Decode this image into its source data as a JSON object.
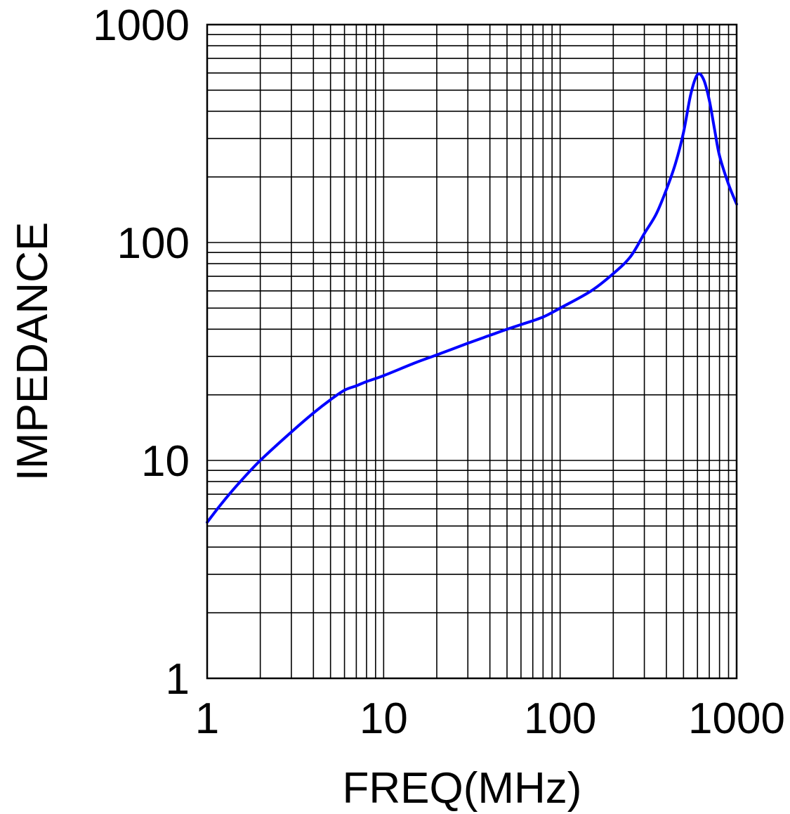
{
  "chart_data": {
    "type": "line",
    "title": "",
    "xlabel": "FREQ(MHz)",
    "ylabel": "IMPEDANCE",
    "x_scale": "log",
    "y_scale": "log",
    "xlim": [
      1,
      1000
    ],
    "ylim": [
      1,
      1000
    ],
    "grid": true,
    "x_ticks": [
      {
        "value": 1,
        "label": "1"
      },
      {
        "value": 10,
        "label": "10"
      },
      {
        "value": 100,
        "label": "100"
      },
      {
        "value": 1000,
        "label": "1000"
      }
    ],
    "y_ticks": [
      {
        "value": 1,
        "label": "1"
      },
      {
        "value": 10,
        "label": "10"
      },
      {
        "value": 100,
        "label": "100"
      },
      {
        "value": 1000,
        "label": "1000"
      }
    ],
    "series": [
      {
        "color": "#0000ff",
        "x": [
          1,
          1.2,
          1.5,
          2,
          3,
          4,
          5,
          6,
          7,
          8,
          10,
          15,
          20,
          30,
          40,
          50,
          60,
          80,
          100,
          150,
          200,
          250,
          300,
          350,
          400,
          450,
          500,
          550,
          600,
          650,
          700,
          750,
          800,
          900,
          1000
        ],
        "y": [
          5.2,
          6.3,
          7.8,
          10,
          13.5,
          16.5,
          19,
          21,
          22,
          23,
          24.5,
          28,
          30.5,
          34.5,
          37.5,
          40,
          42,
          45.5,
          50,
          60,
          72,
          86,
          110,
          135,
          175,
          230,
          320,
          480,
          590,
          560,
          450,
          330,
          250,
          185,
          150
        ]
      }
    ]
  },
  "colors": {
    "grid": "#000000",
    "background": "#ffffff"
  }
}
